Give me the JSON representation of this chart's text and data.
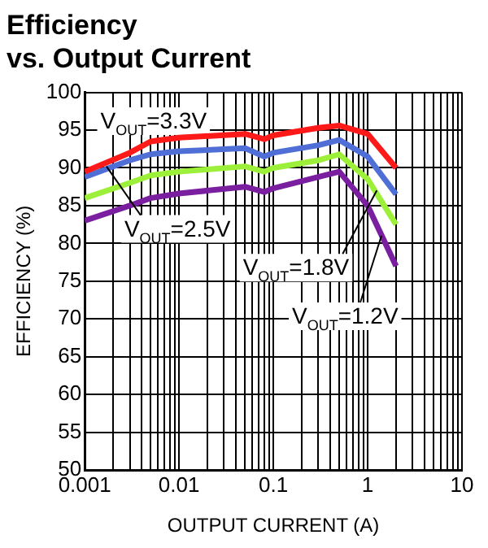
{
  "chart_data": {
    "type": "line",
    "title": "Efficiency\nvs. Output Current",
    "xlabel": "OUTPUT CURRENT (A)",
    "ylabel": "EFFICIENCY (%)",
    "log": "x",
    "grid": true,
    "legend": false,
    "xlim": [
      0.001,
      10
    ],
    "ylim": [
      50,
      100
    ],
    "xticks": [
      0.001,
      {
        "value": 0.002,
        "label": null
      },
      {
        "value": 0.003,
        "label": null
      },
      {
        "value": 0.004,
        "label": null
      },
      {
        "value": 0.005,
        "label": null
      },
      {
        "value": 0.006,
        "label": null
      },
      {
        "value": 0.007,
        "label": null
      },
      {
        "value": 0.008,
        "label": null
      },
      {
        "value": 0.009,
        "label": null
      },
      0.01,
      {
        "value": 0.02,
        "label": null
      },
      {
        "value": 0.03,
        "label": null
      },
      {
        "value": 0.04,
        "label": null
      },
      {
        "value": 0.05,
        "label": null
      },
      {
        "value": 0.06,
        "label": null
      },
      {
        "value": 0.07,
        "label": null
      },
      {
        "value": 0.08,
        "label": null
      },
      {
        "value": 0.09,
        "label": null
      },
      0.1,
      {
        "value": 0.2,
        "label": null
      },
      {
        "value": 0.3,
        "label": null
      },
      {
        "value": 0.4,
        "label": null
      },
      {
        "value": 0.5,
        "label": null
      },
      {
        "value": 0.6,
        "label": null
      },
      {
        "value": 0.7,
        "label": null
      },
      {
        "value": 0.8,
        "label": null
      },
      {
        "value": 0.9,
        "label": null
      },
      1,
      {
        "value": 2,
        "label": null
      },
      {
        "value": 3,
        "label": null
      },
      {
        "value": 4,
        "label": null
      },
      {
        "value": 5,
        "label": null
      },
      {
        "value": 6,
        "label": null
      },
      {
        "value": 7,
        "label": null
      },
      {
        "value": 8,
        "label": null
      },
      {
        "value": 9,
        "label": null
      },
      10
    ],
    "yticks": [
      50,
      55,
      60,
      65,
      70,
      75,
      80,
      85,
      90,
      95,
      100
    ],
    "x": [
      0.001,
      0.003,
      0.005,
      0.01,
      0.05,
      0.08,
      0.1,
      0.3,
      0.5,
      1,
      2
    ],
    "series": [
      {
        "color": "#ff1a1a",
        "values": [
          89.5,
          92,
          93.5,
          94,
          94.5,
          93.8,
          94.3,
          95.3,
          95.6,
          94.5,
          90
        ]
      },
      {
        "color": "#4f6fd6",
        "values": [
          88.8,
          91,
          91.8,
          92.2,
          92.6,
          91.5,
          92,
          93,
          93.7,
          91.5,
          86.5
        ]
      },
      {
        "color": "#9cf03a",
        "values": [
          86,
          88,
          89,
          89.5,
          90.2,
          89.5,
          90,
          91,
          91.8,
          88.5,
          82.5
        ]
      },
      {
        "color": "#7a1fa0",
        "values": [
          83,
          85,
          86,
          86.6,
          87.5,
          86.8,
          87.3,
          88.8,
          89.5,
          85,
          77
        ]
      }
    ],
    "annotations": [
      {
        "text": "V$_{OUT}$=3.3V",
        "x": 0.003,
        "y": 92
      },
      {
        "text": "V$_{OUT}$=2.5V",
        "x": 0.0017,
        "y": 90.2
      },
      {
        "text": "V$_{OUT}$=1.8V",
        "x": 1.25,
        "y": 87
      },
      {
        "text": "V$_{OUT}$=1.2V",
        "x": 1.4,
        "y": 81
      }
    ]
  }
}
